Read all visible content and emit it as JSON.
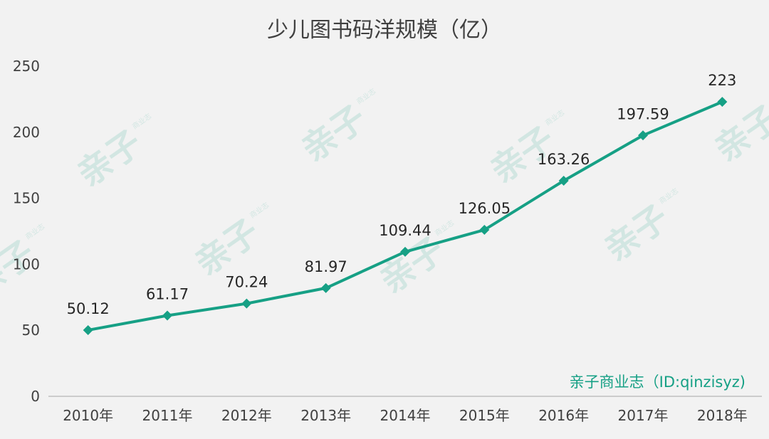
{
  "colors": {
    "background": "#f2f2f2",
    "line": "#16a085",
    "axis": "#bfbfbf",
    "text": "#404040",
    "credit": "#16a085",
    "watermark": "#16a085"
  },
  "chart_data": {
    "type": "line",
    "title": "少儿图书码洋规模（亿）",
    "categories": [
      "2010年",
      "2011年",
      "2012年",
      "2013年",
      "2014年",
      "2015年",
      "2016年",
      "2017年",
      "2018年"
    ],
    "series": [
      {
        "values": [
          50.12,
          61.17,
          70.24,
          81.97,
          109.44,
          126.05,
          163.26,
          197.59,
          223
        ],
        "labels": [
          "50.12",
          "61.17",
          "70.24",
          "81.97",
          "109.44",
          "126.05",
          "163.26",
          "197.59",
          "223"
        ],
        "color": "#16a085",
        "marker": "diamond"
      }
    ],
    "ylim": [
      0,
      250
    ],
    "yticks": [
      "0",
      "50",
      "100",
      "150",
      "200",
      "250"
    ],
    "grid": false,
    "legend": "none"
  },
  "credit": "亲子商业志（ID:qinzisyz)",
  "watermark": {
    "text": "亲子",
    "small": "商业志",
    "count": 7
  }
}
